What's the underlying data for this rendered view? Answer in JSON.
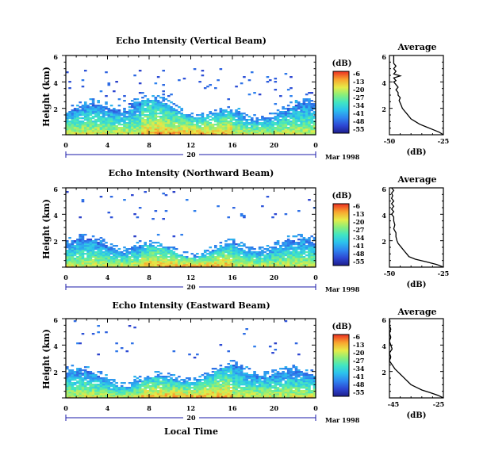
{
  "chart_data": [
    {
      "type": "heatmap",
      "title": "Echo Intensity (Vertical Beam)",
      "ylabel": "Height (km)",
      "xlabel": "",
      "x_ticks": [
        "0",
        "4",
        "8",
        "12",
        "16",
        "20",
        "0"
      ],
      "xlim": [
        0,
        24
      ],
      "y_ticks": [
        "2",
        "4",
        "6"
      ],
      "ylim": [
        0,
        6
      ],
      "date_center": "20",
      "date_label": "Mar 1998",
      "colorbar": {
        "unit": "(dB)",
        "ticks": [
          "-6",
          "-13",
          "-20",
          "-27",
          "-34",
          "-41",
          "-48",
          "-55"
        ],
        "range": [
          -55,
          -6
        ]
      },
      "profile": {
        "title": "Average",
        "xlabel": "(dB)",
        "x_ticks": [
          "-50",
          "-25"
        ],
        "xlim": [
          -50,
          -25
        ],
        "y_ticks": [
          "2",
          "4",
          "6"
        ],
        "ylim": [
          0,
          6
        ],
        "points": [
          [
            -25,
            0.0
          ],
          [
            -27,
            0.2
          ],
          [
            -30,
            0.4
          ],
          [
            -33,
            0.6
          ],
          [
            -36,
            0.8
          ],
          [
            -38,
            1.0
          ],
          [
            -40,
            1.2
          ],
          [
            -41,
            1.4
          ],
          [
            -42,
            1.6
          ],
          [
            -43,
            1.8
          ],
          [
            -44,
            2.0
          ],
          [
            -44.5,
            2.2
          ],
          [
            -45,
            2.4
          ],
          [
            -45.5,
            2.6
          ],
          [
            -45,
            2.8
          ],
          [
            -46,
            3.0
          ],
          [
            -46,
            3.2
          ],
          [
            -47,
            3.4
          ],
          [
            -46,
            3.6
          ],
          [
            -47,
            3.8
          ],
          [
            -48,
            4.0
          ],
          [
            -47,
            4.1
          ],
          [
            -48,
            4.3
          ],
          [
            -45,
            4.45
          ],
          [
            -48,
            4.6
          ],
          [
            -47,
            4.8
          ],
          [
            -48,
            5.0
          ],
          [
            -47,
            5.2
          ],
          [
            -48,
            5.4
          ],
          [
            -48,
            5.6
          ],
          [
            -48,
            5.8
          ],
          [
            -48,
            6.0
          ]
        ]
      }
    },
    {
      "type": "heatmap",
      "title": "Echo Intensity (Northward Beam)",
      "ylabel": "Height (km)",
      "xlabel": "",
      "x_ticks": [
        "0",
        "4",
        "8",
        "12",
        "16",
        "20",
        "0"
      ],
      "xlim": [
        0,
        24
      ],
      "y_ticks": [
        "2",
        "4",
        "6"
      ],
      "ylim": [
        0,
        6
      ],
      "date_center": "20",
      "date_label": "Mar 1998",
      "colorbar": {
        "unit": "(dB)",
        "ticks": [
          "-6",
          "-13",
          "-20",
          "-27",
          "-34",
          "-41",
          "-48",
          "-55"
        ],
        "range": [
          -55,
          -6
        ]
      },
      "profile": {
        "title": "Average",
        "xlabel": "(dB)",
        "x_ticks": [
          "-50",
          "-25"
        ],
        "xlim": [
          -50,
          -25
        ],
        "y_ticks": [
          "2",
          "4",
          "6"
        ],
        "ylim": [
          0,
          6
        ],
        "points": [
          [
            -25,
            0.0
          ],
          [
            -28,
            0.2
          ],
          [
            -33,
            0.4
          ],
          [
            -38,
            0.6
          ],
          [
            -41,
            0.8
          ],
          [
            -42,
            1.0
          ],
          [
            -43,
            1.2
          ],
          [
            -44,
            1.4
          ],
          [
            -45,
            1.6
          ],
          [
            -46,
            1.8
          ],
          [
            -46.5,
            2.0
          ],
          [
            -47,
            2.3
          ],
          [
            -47,
            2.6
          ],
          [
            -48,
            2.9
          ],
          [
            -47.5,
            3.2
          ],
          [
            -48,
            3.5
          ],
          [
            -48,
            3.8
          ],
          [
            -49,
            4.0
          ],
          [
            -48,
            4.2
          ],
          [
            -49,
            4.4
          ],
          [
            -48,
            4.6
          ],
          [
            -49,
            4.8
          ],
          [
            -48,
            5.0
          ],
          [
            -49,
            5.2
          ],
          [
            -48.5,
            5.4
          ],
          [
            -49,
            5.6
          ],
          [
            -48,
            5.8
          ],
          [
            -49,
            6.0
          ]
        ]
      }
    },
    {
      "type": "heatmap",
      "title": "Echo Intensity (Eastward Beam)",
      "ylabel": "Height (km)",
      "xlabel": "Local Time",
      "x_ticks": [
        "0",
        "4",
        "8",
        "12",
        "16",
        "20",
        "0"
      ],
      "xlim": [
        0,
        24
      ],
      "y_ticks": [
        "2",
        "4",
        "6"
      ],
      "ylim": [
        0,
        6
      ],
      "date_center": "20",
      "date_label": "Mar 1998",
      "colorbar": {
        "unit": "(dB)",
        "ticks": [
          "-6",
          "-13",
          "-20",
          "-27",
          "-34",
          "-41",
          "-48",
          "-55"
        ],
        "range": [
          -55,
          -6
        ]
      },
      "profile": {
        "title": "Average",
        "xlabel": "(dB)",
        "x_ticks": [
          "-45",
          "-25"
        ],
        "xlim": [
          -45,
          -25
        ],
        "y_ticks": [
          "2",
          "4",
          "6"
        ],
        "ylim": [
          0,
          6
        ],
        "points": [
          [
            -25,
            0.0
          ],
          [
            -27,
            0.2
          ],
          [
            -30,
            0.4
          ],
          [
            -33,
            0.6
          ],
          [
            -35,
            0.8
          ],
          [
            -37,
            1.0
          ],
          [
            -38,
            1.2
          ],
          [
            -39,
            1.4
          ],
          [
            -40,
            1.6
          ],
          [
            -41,
            1.8
          ],
          [
            -42,
            2.0
          ],
          [
            -43,
            2.2
          ],
          [
            -44,
            2.5
          ],
          [
            -45,
            2.8
          ],
          [
            -44.5,
            3.1
          ],
          [
            -45,
            3.4
          ],
          [
            -44,
            3.7
          ],
          [
            -44.5,
            4.0
          ],
          [
            -45,
            4.3
          ],
          [
            -44.5,
            4.6
          ],
          [
            -45,
            4.9
          ],
          [
            -44.5,
            5.2
          ],
          [
            -45,
            5.5
          ],
          [
            -44.8,
            5.8
          ],
          [
            -45,
            6.0
          ]
        ]
      }
    }
  ]
}
